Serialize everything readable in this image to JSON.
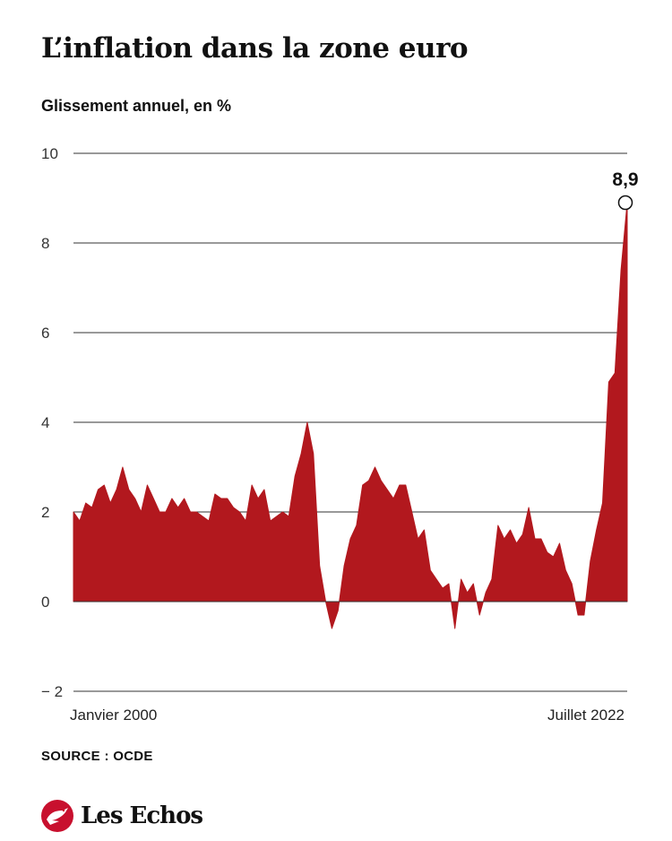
{
  "title": "L’inflation dans la zone euro",
  "subtitle": "Glissement annuel, en %",
  "source": "SOURCE : OCDE",
  "logo_text": "Les Echos",
  "colors": {
    "series": "#b2181e",
    "grid": "#333333",
    "logo": "#c8102e"
  },
  "chart_data": {
    "type": "area",
    "ylim": [
      -2,
      10
    ],
    "yticks": [
      -2,
      0,
      2,
      4,
      6,
      8,
      10
    ],
    "ytick_labels": [
      "− 2",
      "0",
      "2",
      "4",
      "6",
      "8",
      "10"
    ],
    "x_start_label": "Janvier 2000",
    "x_end_label": "Juillet 2022",
    "peak_label": "8,9",
    "x_range": [
      "2000-01",
      "2022-07"
    ],
    "x": [
      "2000-01",
      "2000-04",
      "2000-07",
      "2000-10",
      "2001-01",
      "2001-04",
      "2001-07",
      "2001-10",
      "2002-01",
      "2002-04",
      "2002-07",
      "2002-10",
      "2003-01",
      "2003-04",
      "2003-07",
      "2003-10",
      "2004-01",
      "2004-04",
      "2004-07",
      "2004-10",
      "2005-01",
      "2005-04",
      "2005-07",
      "2005-10",
      "2006-01",
      "2006-04",
      "2006-07",
      "2006-10",
      "2007-01",
      "2007-04",
      "2007-07",
      "2007-10",
      "2008-01",
      "2008-04",
      "2008-07",
      "2008-10",
      "2009-01",
      "2009-04",
      "2009-07",
      "2009-10",
      "2010-01",
      "2010-04",
      "2010-07",
      "2010-10",
      "2011-01",
      "2011-04",
      "2011-07",
      "2011-10",
      "2012-01",
      "2012-04",
      "2012-07",
      "2012-10",
      "2013-01",
      "2013-04",
      "2013-07",
      "2013-10",
      "2014-01",
      "2014-04",
      "2014-07",
      "2014-10",
      "2015-01",
      "2015-04",
      "2015-07",
      "2015-10",
      "2016-01",
      "2016-04",
      "2016-07",
      "2016-10",
      "2017-01",
      "2017-04",
      "2017-07",
      "2017-10",
      "2018-01",
      "2018-04",
      "2018-07",
      "2018-10",
      "2019-01",
      "2019-04",
      "2019-07",
      "2019-10",
      "2020-01",
      "2020-04",
      "2020-07",
      "2020-10",
      "2021-01",
      "2021-04",
      "2021-07",
      "2021-10",
      "2022-01",
      "2022-04",
      "2022-07"
    ],
    "series": [
      {
        "values": [
          2.0,
          1.8,
          2.2,
          2.1,
          2.5,
          2.6,
          2.2,
          2.5,
          3.0,
          2.5,
          2.3,
          2.0,
          2.6,
          2.3,
          2.0,
          2.0,
          2.3,
          2.1,
          2.3,
          2.0,
          2.0,
          1.9,
          1.8,
          2.4,
          2.3,
          2.3,
          2.1,
          2.0,
          1.8,
          2.6,
          2.3,
          2.5,
          1.8,
          1.9,
          2.0,
          1.9,
          2.8,
          3.3,
          4.0,
          3.3,
          0.8,
          0.0,
          -0.6,
          -0.2,
          0.8,
          1.4,
          1.7,
          2.6,
          2.7,
          3.0,
          2.7,
          2.5,
          2.3,
          2.6,
          2.6,
          2.0,
          1.4,
          1.6,
          0.7,
          0.5,
          0.3,
          0.4,
          -0.6,
          0.5,
          0.2,
          0.4,
          -0.3,
          0.2,
          0.5,
          1.7,
          1.4,
          1.6,
          1.3,
          1.5,
          2.1,
          1.4,
          1.4,
          1.1,
          1.0,
          1.3,
          0.7,
          0.4,
          -0.3,
          -0.3,
          0.9,
          1.6,
          2.2,
          4.9,
          5.1,
          7.4,
          8.9
        ]
      }
    ]
  }
}
